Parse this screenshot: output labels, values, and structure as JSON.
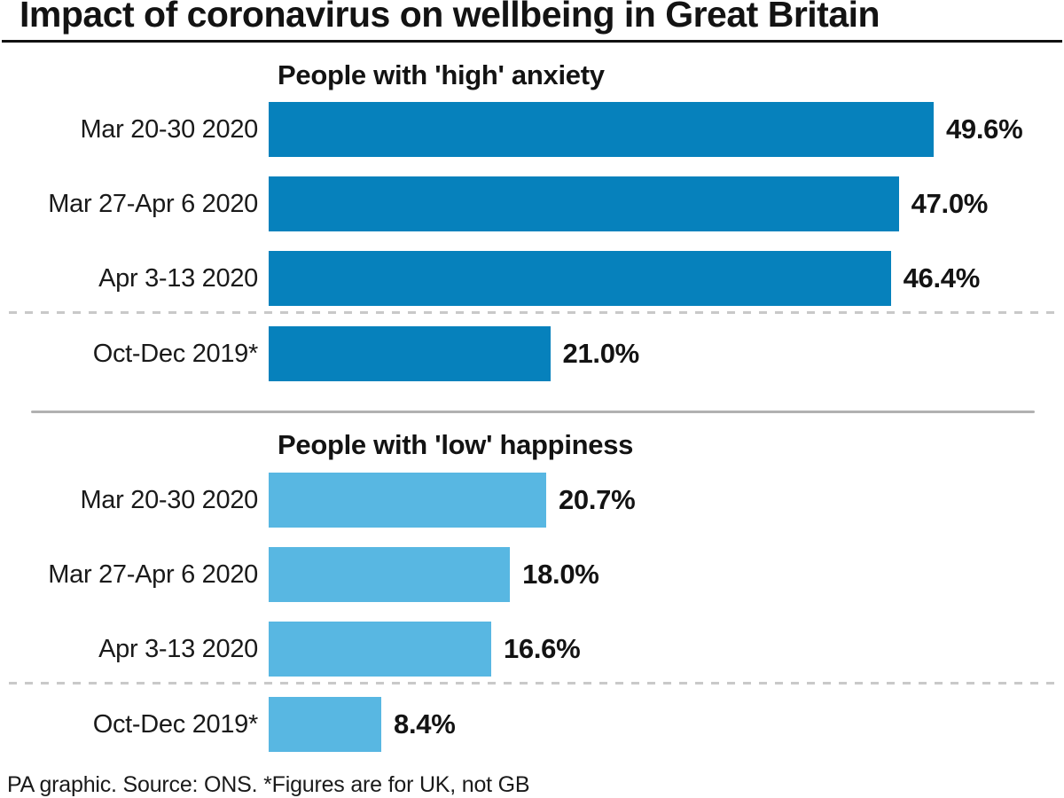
{
  "header": {
    "title": "Impact of coronavirus on wellbeing in Great Britain"
  },
  "chart_data": [
    {
      "type": "bar",
      "orientation": "horizontal",
      "title": "People with 'high' anxiety",
      "categories": [
        "Mar 20-30 2020",
        "Mar 27-Apr 6 2020",
        "Apr 3-13 2020",
        "Oct-Dec 2019*"
      ],
      "values": [
        49.6,
        47.0,
        46.4,
        21.0
      ],
      "value_labels": [
        "49.6%",
        "47.0%",
        "46.4%",
        "21.0%"
      ],
      "bar_color": "#0681bc",
      "xlim": [
        0,
        56
      ],
      "grid": false,
      "legend": "none",
      "separator_before_index": 3
    },
    {
      "type": "bar",
      "orientation": "horizontal",
      "title": "People with 'low' happiness",
      "categories": [
        "Mar 20-30 2020",
        "Mar 27-Apr 6 2020",
        "Apr 3-13 2020",
        "Oct-Dec 2019*"
      ],
      "values": [
        20.7,
        18.0,
        16.6,
        8.4
      ],
      "value_labels": [
        "20.7%",
        "18.0%",
        "16.6%",
        "8.4%"
      ],
      "bar_color": "#58b7e2",
      "xlim": [
        0,
        56
      ],
      "grid": false,
      "legend": "none",
      "separator_before_index": 3
    }
  ],
  "footer": {
    "source": "PA graphic. Source: ONS. *Figures are for UK, not GB"
  },
  "colors": {
    "dark_blue": "#0681bc",
    "light_blue": "#58b7e2",
    "title_text": "#131313",
    "title_rule": "#111111",
    "divider_solid": "#b1b1b1",
    "divider_dashed": "#c9c9c9"
  }
}
